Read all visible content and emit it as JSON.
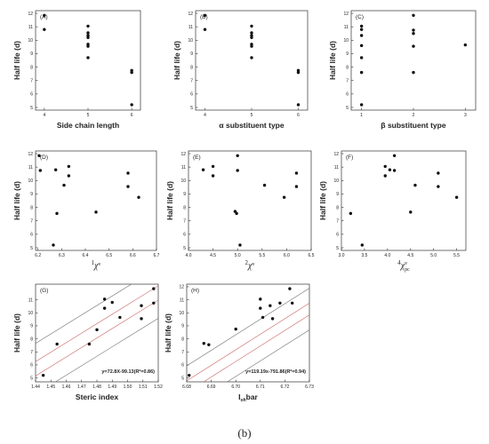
{
  "figure": {
    "caption": "(b)",
    "y_axis_title": "Half life (d)"
  },
  "chart_data": [
    {
      "panel": "(A)",
      "type": "scatter",
      "xlabel": "Side chain length",
      "ylabel": "Half life (d)",
      "xlim": [
        3.8,
        6.2
      ],
      "ylim": [
        4.8,
        12.2
      ],
      "xticks": [
        4,
        5,
        6
      ],
      "yticks": [
        5,
        6,
        7,
        8,
        9,
        10,
        11,
        12
      ],
      "points": [
        [
          4,
          11.85
        ],
        [
          4,
          10.8
        ],
        [
          5,
          11.05
        ],
        [
          5,
          10.55
        ],
        [
          5,
          10.35
        ],
        [
          5,
          10.2
        ],
        [
          5,
          9.7
        ],
        [
          5,
          9.55
        ],
        [
          5,
          8.7
        ],
        [
          6,
          7.75
        ],
        [
          6,
          7.6
        ],
        [
          6,
          5.2
        ]
      ]
    },
    {
      "panel": "(B)",
      "type": "scatter",
      "xlabel": "α substituent type",
      "ylabel": "Half life (d)",
      "xlim": [
        3.8,
        6.2
      ],
      "ylim": [
        4.8,
        12.2
      ],
      "xticks": [
        4,
        5,
        6
      ],
      "yticks": [
        5,
        6,
        7,
        8,
        9,
        10,
        11,
        12
      ],
      "points": [
        [
          4,
          11.85
        ],
        [
          4,
          10.8
        ],
        [
          5,
          11.05
        ],
        [
          5,
          10.55
        ],
        [
          5,
          10.35
        ],
        [
          5,
          10.2
        ],
        [
          5,
          9.7
        ],
        [
          5,
          9.55
        ],
        [
          5,
          8.7
        ],
        [
          6,
          7.75
        ],
        [
          6,
          7.6
        ],
        [
          6,
          5.2
        ]
      ]
    },
    {
      "panel": "(C)",
      "type": "scatter",
      "xlabel": "β substituent type",
      "ylabel": "Half life (d)",
      "xlim": [
        0.8,
        3.2
      ],
      "ylim": [
        4.8,
        12.2
      ],
      "xticks": [
        1,
        2,
        3
      ],
      "yticks": [
        5,
        6,
        7,
        8,
        9,
        10,
        11,
        12
      ],
      "points": [
        [
          1,
          11.05
        ],
        [
          1,
          10.8
        ],
        [
          1,
          10.35
        ],
        [
          1,
          9.6
        ],
        [
          1,
          8.7
        ],
        [
          1,
          7.6
        ],
        [
          1,
          5.2
        ],
        [
          2,
          11.85
        ],
        [
          2,
          10.75
        ],
        [
          2,
          10.5
        ],
        [
          2,
          9.55
        ],
        [
          2,
          7.6
        ],
        [
          3,
          9.65
        ]
      ]
    },
    {
      "panel": "(D)",
      "type": "scatter",
      "xlabel": "1χν",
      "xlabel_sup": "1",
      "xlabel_main": "χ",
      "xlabel_sub": "v",
      "ylabel": "Half life (d)",
      "xlim": [
        6.19,
        6.7
      ],
      "ylim": [
        4.8,
        12.2
      ],
      "xticks": [
        6.2,
        6.3,
        6.4,
        6.5,
        6.6,
        6.7
      ],
      "xtick_labels": [
        "6.2",
        "6.3",
        "6.4",
        "6.5",
        "6.6",
        "6.7"
      ],
      "yticks": [
        5,
        6,
        7,
        8,
        9,
        10,
        11,
        12
      ],
      "points": [
        [
          6.205,
          11.85
        ],
        [
          6.21,
          10.75
        ],
        [
          6.265,
          5.2
        ],
        [
          6.275,
          10.8
        ],
        [
          6.28,
          7.55
        ],
        [
          6.31,
          9.65
        ],
        [
          6.33,
          11.05
        ],
        [
          6.33,
          10.35
        ],
        [
          6.445,
          7.65
        ],
        [
          6.58,
          10.55
        ],
        [
          6.58,
          9.55
        ],
        [
          6.625,
          8.75
        ]
      ]
    },
    {
      "panel": "(E)",
      "type": "scatter",
      "xlabel": "2χν",
      "xlabel_sup": "2",
      "xlabel_main": "χ",
      "xlabel_sub": "v",
      "ylabel": "Half life (d)",
      "xlim": [
        4.0,
        6.5
      ],
      "ylim": [
        4.8,
        12.2
      ],
      "xticks": [
        4.0,
        4.5,
        5.0,
        5.5,
        6.0,
        6.5
      ],
      "xtick_labels": [
        "4.0",
        "4.5",
        "5.0",
        "5.5",
        "6.0",
        "6.5"
      ],
      "yticks": [
        5,
        6,
        7,
        8,
        9,
        10,
        11,
        12
      ],
      "points": [
        [
          4.3,
          10.8
        ],
        [
          4.5,
          11.05
        ],
        [
          4.5,
          10.35
        ],
        [
          4.95,
          7.7
        ],
        [
          4.98,
          7.55
        ],
        [
          5.0,
          11.85
        ],
        [
          5.0,
          10.75
        ],
        [
          5.05,
          5.2
        ],
        [
          5.55,
          9.65
        ],
        [
          5.95,
          8.75
        ],
        [
          6.2,
          10.55
        ],
        [
          6.2,
          9.55
        ]
      ]
    },
    {
      "panel": "(F)",
      "type": "scatter",
      "xlabel": "4χpcν",
      "xlabel_sup": "4",
      "xlabel_main": "χ",
      "xlabel_sub": "pc",
      "xlabel_supv": "v",
      "ylabel": "Half life (d)",
      "xlim": [
        3.0,
        5.7
      ],
      "ylim": [
        4.8,
        12.2
      ],
      "xticks": [
        3.0,
        3.5,
        4.0,
        4.5,
        5.0,
        5.5
      ],
      "xtick_labels": [
        "3.0",
        "3.5",
        "4.0",
        "4.5",
        "5.0",
        "5.5"
      ],
      "yticks": [
        5,
        6,
        7,
        8,
        9,
        10,
        11,
        12
      ],
      "points": [
        [
          3.2,
          7.55
        ],
        [
          3.45,
          5.2
        ],
        [
          3.95,
          11.05
        ],
        [
          3.95,
          10.35
        ],
        [
          4.05,
          10.8
        ],
        [
          4.15,
          11.85
        ],
        [
          4.15,
          10.75
        ],
        [
          4.5,
          7.65
        ],
        [
          4.6,
          9.65
        ],
        [
          5.1,
          10.55
        ],
        [
          5.1,
          9.55
        ],
        [
          5.5,
          8.75
        ]
      ]
    },
    {
      "panel": "(G)",
      "type": "scatter",
      "xlabel": "Steric index",
      "ylabel": "Half life (d)",
      "xlim": [
        1.44,
        1.52
      ],
      "ylim": [
        4.7,
        12.2
      ],
      "xticks": [
        1.44,
        1.45,
        1.46,
        1.47,
        1.48,
        1.49,
        1.5,
        1.51,
        1.52
      ],
      "xtick_labels": [
        "1.44",
        "1.45",
        "1.46",
        "1.47",
        "1.48",
        "1.49",
        "1.50",
        "1.51",
        "1.52"
      ],
      "yticks": [
        5,
        6,
        7,
        8,
        9,
        10,
        11
      ],
      "points": [
        [
          1.445,
          5.2
        ],
        [
          1.454,
          7.6
        ],
        [
          1.475,
          7.6
        ],
        [
          1.48,
          8.7
        ],
        [
          1.485,
          11.05
        ],
        [
          1.485,
          10.35
        ],
        [
          1.49,
          10.8
        ],
        [
          1.495,
          9.65
        ],
        [
          1.509,
          10.55
        ],
        [
          1.509,
          9.55
        ],
        [
          1.517,
          11.85
        ],
        [
          1.517,
          10.75
        ]
      ],
      "fit": {
        "equation": "y=72.8X-99.13(R²=0.86)",
        "slope": 72.8,
        "intercept": -99.13
      },
      "bands": [
        {
          "kind": "upper",
          "offset": 1.95
        },
        {
          "kind": "lower",
          "offset": -1.95
        },
        {
          "kind": "inner-upper",
          "offset": 0.55
        },
        {
          "kind": "inner-lower",
          "offset": -0.55
        }
      ]
    },
    {
      "panel": "(H)",
      "type": "scatter",
      "xlabel": "Iohbar",
      "xlabel_main": "I",
      "xlabel_sub": "oh",
      "xlabel_rest": "bar",
      "ylabel": "Half life (d)",
      "xlim": [
        6.68,
        6.73
      ],
      "ylim": [
        4.7,
        12.2
      ],
      "xticks": [
        6.68,
        6.69,
        6.7,
        6.71,
        6.72,
        6.73
      ],
      "xtick_labels": [
        "6.68",
        "6.69",
        "6.70",
        "6.71",
        "6.72",
        "6.73"
      ],
      "yticks": [
        5,
        6,
        7,
        8,
        9,
        10,
        11,
        12
      ],
      "points": [
        [
          6.681,
          5.2
        ],
        [
          6.687,
          7.65
        ],
        [
          6.689,
          7.55
        ],
        [
          6.7,
          8.75
        ],
        [
          6.71,
          11.05
        ],
        [
          6.71,
          10.35
        ],
        [
          6.711,
          9.65
        ],
        [
          6.714,
          10.55
        ],
        [
          6.715,
          9.55
        ],
        [
          6.718,
          10.75
        ],
        [
          6.722,
          11.85
        ],
        [
          6.723,
          10.75
        ]
      ],
      "fit": {
        "equation": "y=119.19x-791.86(R²=0.94)",
        "slope": 119.19,
        "intercept": -791.86
      },
      "bands": [
        {
          "kind": "upper",
          "offset": 1.6
        },
        {
          "kind": "lower",
          "offset": -1.6
        },
        {
          "kind": "inner-upper",
          "offset": 0.45
        },
        {
          "kind": "inner-lower",
          "offset": -0.45
        }
      ]
    }
  ]
}
